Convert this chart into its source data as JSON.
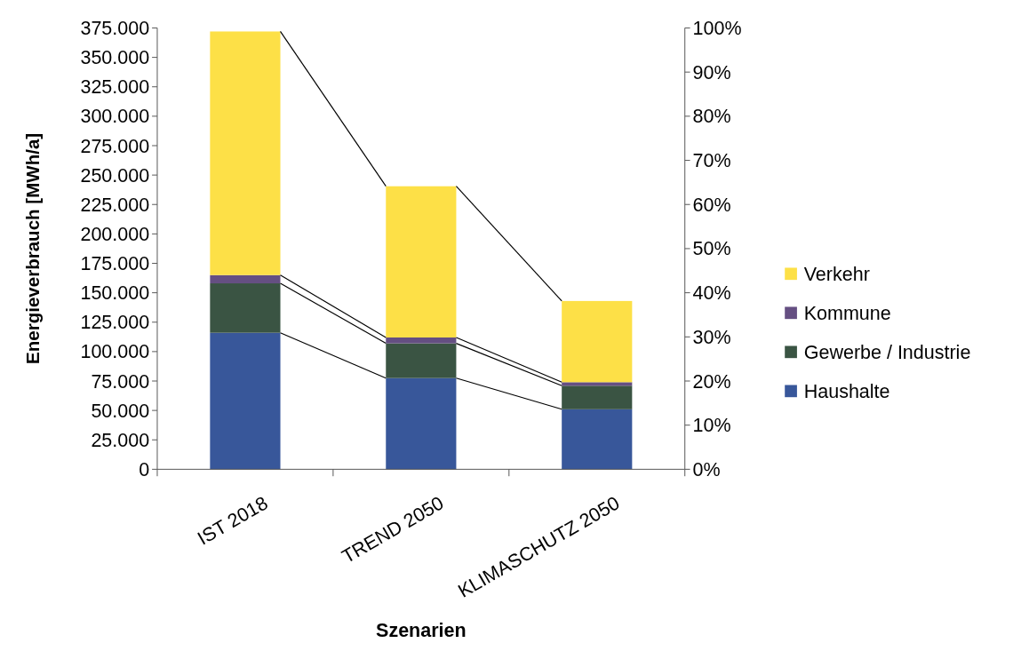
{
  "chart_data": {
    "type": "bar",
    "stacked": true,
    "xlabel": "Szenarien",
    "ylabel": "Energieverbrauch [MWh/a]",
    "categories": [
      "IST 2018",
      "TREND 2050",
      "KLIMASCHUTZ 2050"
    ],
    "series": [
      {
        "name": "Haushalte",
        "color": "#38579a",
        "values": [
          116000,
          77500,
          51000
        ]
      },
      {
        "name": "Gewerbe / Industrie",
        "color": "#3a5443",
        "values": [
          42000,
          29500,
          20000
        ]
      },
      {
        "name": "Kommune",
        "color": "#654f82",
        "values": [
          7000,
          5000,
          3000
        ]
      },
      {
        "name": "Verkehr",
        "color": "#fde047",
        "values": [
          207000,
          128500,
          69000
        ]
      }
    ],
    "ylim": [
      0,
      375000
    ],
    "yticks": [
      0,
      {
        "value": 25000,
        "label": "25.000"
      },
      {
        "value": 50000,
        "label": "50.000"
      },
      {
        "value": 75000,
        "label": "75.000"
      },
      {
        "value": 100000,
        "label": "100.000"
      },
      {
        "value": 125000,
        "label": "125.000"
      },
      {
        "value": 150000,
        "label": "150.000"
      },
      {
        "value": 175000,
        "label": "175.000"
      },
      {
        "value": 200000,
        "label": "200.000"
      },
      {
        "value": 225000,
        "label": "225.000"
      },
      {
        "value": 250000,
        "label": "250.000"
      },
      {
        "value": 275000,
        "label": "275.000"
      },
      {
        "value": 300000,
        "label": "300.000"
      },
      {
        "value": 325000,
        "label": "325.000"
      },
      {
        "value": 350000,
        "label": "350.000"
      },
      {
        "value": 375000,
        "label": "375.000"
      }
    ],
    "y2lim": [
      0,
      100
    ],
    "y2ticks": [
      {
        "value": 0,
        "label": "0%"
      },
      {
        "value": 10,
        "label": "10%"
      },
      {
        "value": 20,
        "label": "20%"
      },
      {
        "value": 30,
        "label": "30%"
      },
      {
        "value": 40,
        "label": "40%"
      },
      {
        "value": 50,
        "label": "50%"
      },
      {
        "value": 60,
        "label": "60%"
      },
      {
        "value": 70,
        "label": "70%"
      },
      {
        "value": 80,
        "label": "80%"
      },
      {
        "value": 90,
        "label": "90%"
      },
      {
        "value": 100,
        "label": "100%"
      }
    ],
    "legend": "right",
    "grid": false
  }
}
